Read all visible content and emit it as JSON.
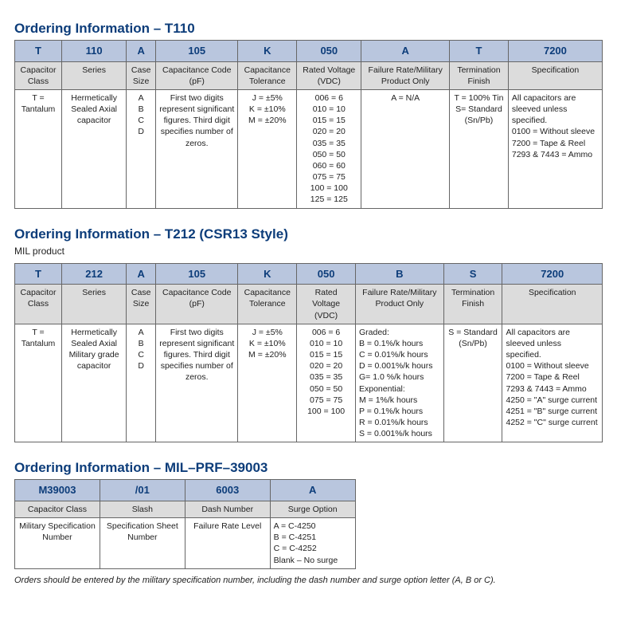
{
  "table1": {
    "title": "Ordering Information – T110",
    "colWidths": [
      "8%",
      "11%",
      "5%",
      "14%",
      "10%",
      "11%",
      "15%",
      "10%",
      "16%"
    ],
    "codeRow": [
      "T",
      "110",
      "A",
      "105",
      "K",
      "050",
      "A",
      "T",
      "7200"
    ],
    "labelRow": [
      "Capacitor Class",
      "Series",
      "Case Size",
      "Capacitance Code (pF)",
      "Capacitance Tolerance",
      "Rated Voltage (VDC)",
      "Failure Rate/Military Product Only",
      "Termination Finish",
      "Specification"
    ],
    "dataRow": [
      "T = Tantalum",
      "Hermetically Sealed Axial capacitor",
      "A\nB\nC\nD",
      "First two digits represent significant figures. Third digit specifies number of zeros.",
      "J = ±5%\nK = ±10%\nM = ±20%",
      "006 = 6\n010 = 10\n015 = 15\n020 = 20\n035 = 35\n050 = 50\n060 = 60\n075 = 75\n100 = 100\n125 = 125",
      "A = N/A",
      "T = 100% Tin\nS= Standard (Sn/Pb)",
      "All capacitors are sleeved unless specified.\n0100 = Without sleeve\n7200 = Tape & Reel\n7293 & 7443 = Ammo"
    ]
  },
  "table2": {
    "title": "Ordering Information – T212 (CSR13 Style)",
    "subtitle": "MIL product",
    "colWidths": [
      "8%",
      "11%",
      "5%",
      "14%",
      "10%",
      "10%",
      "15%",
      "10%",
      "17%"
    ],
    "codeRow": [
      "T",
      "212",
      "A",
      "105",
      "K",
      "050",
      "B",
      "S",
      "7200"
    ],
    "labelRow": [
      "Capacitor Class",
      "Series",
      "Case Size",
      "Capacitance Code (pF)",
      "Capacitance Tolerance",
      "Rated Voltage (VDC)",
      "Failure Rate/Military Product Only",
      "Termination Finish",
      "Specification"
    ],
    "dataRow": [
      "T = Tantalum",
      "Hermetically Sealed Axial Military grade capacitor",
      "A\nB\nC\nD",
      "First two digits represent significant figures. Third digit specifies number of zeros.",
      "J = ±5%\nK = ±10%\nM = ±20%",
      "006 = 6\n010 = 10\n015 = 15\n020 = 20\n035 = 35\n050 = 50\n075 = 75\n100 = 100",
      "Graded:\nB = 0.1%/k hours\nC = 0.01%/k hours\nD = 0.001%/k hours\nG= 1.0 %/k hours\nExponential:\nM = 1%/k hours\nP = 0.1%/k hours\nR = 0.01%/k hours\nS = 0.001%/k hours",
      "S = Standard (Sn/Pb)",
      "All capacitors are sleeved unless specified.\n0100 = Without sleeve\n7200 = Tape & Reel\n7293 & 7443 = Ammo\n4250 = \"A\" surge current\n4251 = \"B\" surge current\n4252 = \"C\" surge current"
    ]
  },
  "table3": {
    "title": "Ordering Information – MIL–PRF–39003",
    "colWidths": [
      "25%",
      "25%",
      "25%",
      "25%"
    ],
    "codeRow": [
      "M39003",
      "/01",
      "6003",
      "A"
    ],
    "labelRow": [
      "Capacitor Class",
      "Slash",
      "Dash Number",
      "Surge Option"
    ],
    "dataRow": [
      "Military Specification Number",
      "Specification Sheet Number",
      "Failure Rate Level",
      "A = C-4250\nB = C-4251\nC = C-4252\nBlank – No surge"
    ],
    "note": "Orders should be entered by the military specification number, including the dash number and surge option letter (A, B or C)."
  }
}
